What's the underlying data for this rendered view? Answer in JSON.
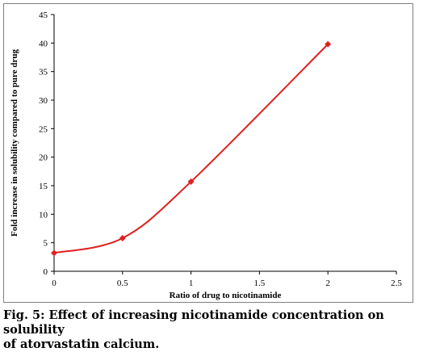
{
  "chart_data": {
    "type": "line",
    "title": "",
    "xlabel": "Ratio of drug to nicotinamide",
    "ylabel": "Fold increase in solubility compared to pure drug",
    "xlim": [
      0,
      2.5
    ],
    "ylim": [
      0,
      45
    ],
    "x_ticks": [
      "0",
      "0.5",
      "1",
      "1.5",
      "2",
      "2.5"
    ],
    "y_ticks": [
      "0",
      "5",
      "10",
      "15",
      "20",
      "25",
      "30",
      "35",
      "40",
      "45"
    ],
    "grid": false,
    "legend": "none",
    "series": [
      {
        "color": "#e02020",
        "marker": "diamond",
        "smooth": true,
        "x": [
          0,
          0.5,
          1,
          2
        ],
        "y": [
          3.2,
          5.8,
          15.7,
          39.8
        ]
      }
    ]
  },
  "caption": {
    "line1": "Fig. 5: Effect of increasing nicotinamide concentration on solubility",
    "line2": "of atorvastatin calcium."
  }
}
